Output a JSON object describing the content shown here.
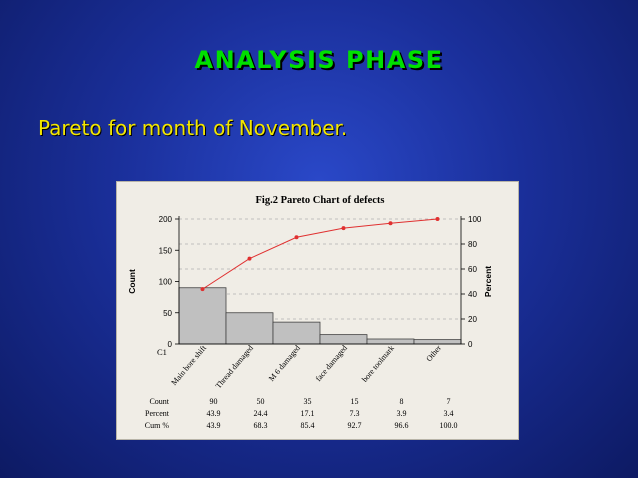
{
  "slide": {
    "title": "ANALYSIS PHASE",
    "subtitle": "Pareto for month of November."
  },
  "colors": {
    "title": "#00e000",
    "subtitle": "#f2e600",
    "bar_fill": "#c0c0c0",
    "cum_line": "#e03030"
  },
  "chart_data": {
    "type": "bar",
    "title": "Fig.2 Pareto Chart of defects",
    "ylabel": "Count",
    "y2label": "Percent",
    "xaxis_name": "C1",
    "categories": [
      "Main bore shift",
      "Thread damaged",
      "M 6 damaged",
      "face damaged",
      "bore toolmark",
      "Other"
    ],
    "series": [
      {
        "name": "Count",
        "values": [
          90,
          50,
          35,
          15,
          8,
          7
        ]
      },
      {
        "name": "Cum %",
        "values": [
          43.9,
          68.3,
          85.4,
          92.7,
          96.6,
          100.0
        ]
      }
    ],
    "ylim": [
      0,
      200
    ],
    "y_ticks": [
      "0",
      "50",
      "100",
      "150",
      "200"
    ],
    "y2lim": [
      0,
      100
    ],
    "y2_ticks": [
      "0",
      "20",
      "40",
      "60",
      "80",
      "100"
    ],
    "table": {
      "row_labels": [
        "Count",
        "Percent",
        "Cum %"
      ],
      "rows": [
        [
          "90",
          "50",
          "35",
          "15",
          "8",
          "7"
        ],
        [
          "43.9",
          "24.4",
          "17.1",
          "7.3",
          "3.9",
          "3.4"
        ],
        [
          "43.9",
          "68.3",
          "85.4",
          "92.7",
          "96.6",
          "100.0"
        ]
      ]
    },
    "grid": true
  }
}
